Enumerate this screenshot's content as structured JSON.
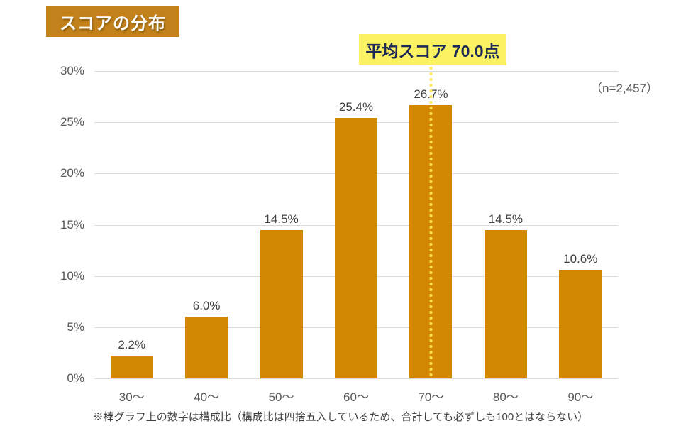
{
  "header": {
    "title": "スコアの分布"
  },
  "annotation": {
    "label": "平均スコア 70.0点"
  },
  "sample_size_label": "（n=2,457）",
  "footnote": "※棒グラフ上の数字は構成比（構成比は四捨五入しているため、合計しても必ずしも100とはならない）",
  "chart_data": {
    "type": "bar",
    "title": "スコアの分布",
    "categories": [
      "30～",
      "40～",
      "50～",
      "60～",
      "70～",
      "80～",
      "90～"
    ],
    "values": [
      2.2,
      6.0,
      14.5,
      25.4,
      26.7,
      14.5,
      10.6
    ],
    "value_labels": [
      "2.2%",
      "6.0%",
      "14.5%",
      "25.4%",
      "26.7%",
      "14.5%",
      "10.6%"
    ],
    "xlabel": "",
    "ylabel": "",
    "ylim": [
      0,
      30
    ],
    "y_ticks": [
      "0%",
      "5%",
      "10%",
      "15%",
      "20%",
      "25%",
      "30%"
    ],
    "grid": true,
    "legend": false,
    "sample_size": "（n=2,457）",
    "mean_line": {
      "category": "70～",
      "label": "平均スコア 70.0点",
      "style": "dotted-vertical"
    },
    "colors": {
      "bar": "#D28800",
      "grid": "#DBDBDB",
      "axis_text": "#595959",
      "value_label": "#404040",
      "dot_line": "#FFE94D",
      "annotation_bg": "#FAF263",
      "annotation_text": "#1D2A57",
      "title_bg": "#C2811A",
      "title_text": "#FFFFFF"
    }
  }
}
